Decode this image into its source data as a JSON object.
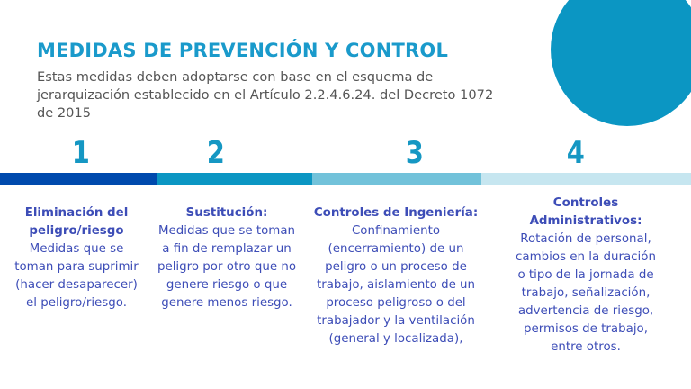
{
  "title": "MEDIDAS DE PREVENCIÓN Y CONTROL",
  "intro": "Estas medidas deben adoptarse con base en el esquema de jerarquización establecido en el Artículo 2.2.4.6.24. del Decreto 1072 de 2015",
  "colors": {
    "accent": "#1a9acb",
    "text": "#3d4db7",
    "bar1": "#004aad",
    "bar2": "#0b96c3",
    "bar3": "#72c2da",
    "bar4": "#c6e6f0",
    "circle": "#0b96c3"
  },
  "steps": [
    {
      "number": "1",
      "heading": [
        "Eliminación  del",
        "peligro/riesgo"
      ],
      "body": [
        "Medidas  que se",
        "toman  para suprimir",
        "(hacer desaparecer)",
        "el peligro/riesgo."
      ]
    },
    {
      "number": "2",
      "heading": [
        "Sustitución:"
      ],
      "body": [
        "Medidas que se toman",
        "a fin de remplazar un",
        "peligro por otro que no",
        "genere riesgo o que",
        "genere menos riesgo."
      ]
    },
    {
      "number": "3",
      "heading": [
        "Controles de Ingeniería:"
      ],
      "body": [
        "Confinamiento",
        "(encerramiento) de un",
        "peligro o un proceso de",
        "trabajo, aislamiento de un",
        "proceso peligroso o del",
        "trabajador y la ventilación",
        "(general y localizada),"
      ]
    },
    {
      "number": "4",
      "heading": [
        "Controles",
        "Administrativos:"
      ],
      "body": [
        "Rotación  de  personal,",
        "cambios  en  la duración",
        "o tipo  de  la jornada  de",
        "trabajo, señalización,",
        "advertencia de riesgo,",
        "permisos de trabajo,",
        "entre otros."
      ]
    }
  ]
}
